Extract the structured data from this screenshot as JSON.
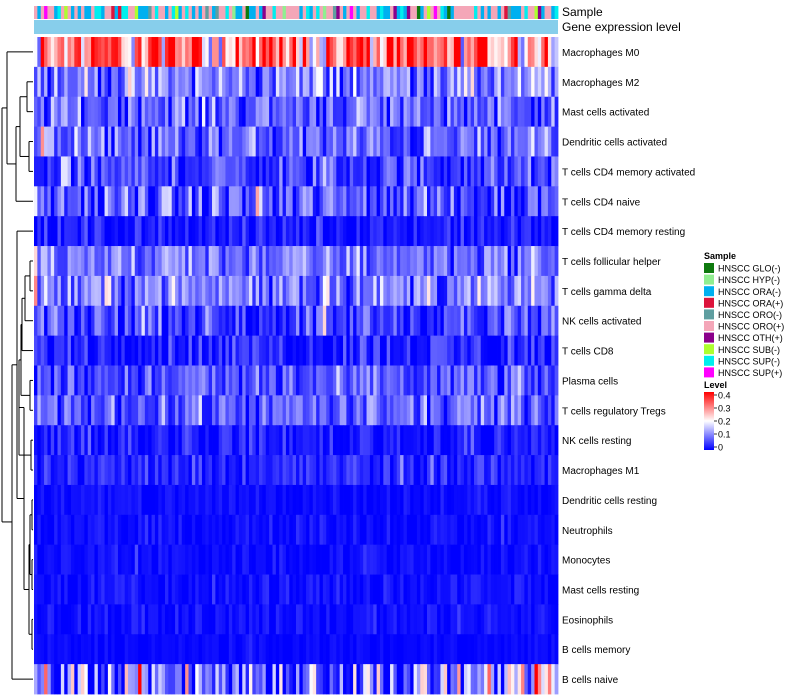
{
  "chart_data": {
    "type": "heatmap",
    "annotation_rows": [
      "Sample",
      "Gene expression level"
    ],
    "row_labels": [
      "Macrophages M0",
      "Macrophages M2",
      "Mast cells activated",
      "Dendritic cells activated",
      "T cells CD4 memory activated",
      "T cells CD4 naive",
      "T cells CD4 memory resting",
      "T cells follicular helper",
      "T cells gamma delta",
      "NK cells activated",
      "T cells CD8",
      "Plasma cells",
      "T cells regulatory  Tregs",
      "NK cells resting",
      "Macrophages M1",
      "Dendritic cells resting",
      "Neutrophils",
      "Monocytes",
      "Mast cells resting",
      "Eosinophils",
      "B cells memory",
      "B cells naive"
    ],
    "row_mean_level": [
      0.3,
      0.1,
      0.08,
      0.07,
      0.05,
      0.06,
      0.02,
      0.09,
      0.1,
      0.05,
      0.03,
      0.06,
      0.07,
      0.02,
      0.03,
      0.01,
      0.01,
      0.01,
      0.01,
      0.01,
      0.005,
      0.09
    ],
    "row_spread": [
      0.12,
      0.07,
      0.06,
      0.06,
      0.05,
      0.07,
      0.03,
      0.05,
      0.06,
      0.05,
      0.04,
      0.05,
      0.05,
      0.03,
      0.03,
      0.015,
      0.015,
      0.015,
      0.02,
      0.015,
      0.01,
      0.12
    ],
    "n_samples": 156,
    "sample_legend": {
      "title": "Sample",
      "items": [
        {
          "label": "HNSCC GLO(-)",
          "color": "#0e7a0e"
        },
        {
          "label": "HNSCC HYP(-)",
          "color": "#90ee90"
        },
        {
          "label": "HNSCC ORA(-)",
          "color": "#00b0f0"
        },
        {
          "label": "HNSCC ORA(+)",
          "color": "#dc143c"
        },
        {
          "label": "HNSCC ORO(-)",
          "color": "#5f9ea0"
        },
        {
          "label": "HNSCC ORO(+)",
          "color": "#f4a6b8"
        },
        {
          "label": "HNSCC OTH(+)",
          "color": "#8b008b"
        },
        {
          "label": "HNSCC SUB(-)",
          "color": "#adff2f"
        },
        {
          "label": "HNSCC SUP(-)",
          "color": "#00eeee"
        },
        {
          "label": "HNSCC SUP(+)",
          "color": "#ff00ff"
        }
      ],
      "weights": [
        1,
        3,
        30,
        3,
        3,
        40,
        1,
        2,
        16,
        1
      ]
    },
    "level_legend": {
      "title": "Level",
      "ticks": [
        "0.4",
        "0.3",
        "0.2",
        "0.1",
        "0"
      ],
      "tick_values": [
        0.4,
        0.3,
        0.2,
        0.1,
        0
      ],
      "range": [
        0,
        0.4
      ],
      "colors": [
        "#0000ff",
        "#ffffff",
        "#ff0000"
      ]
    },
    "gene_expression_level_color": "#87ceeb"
  }
}
